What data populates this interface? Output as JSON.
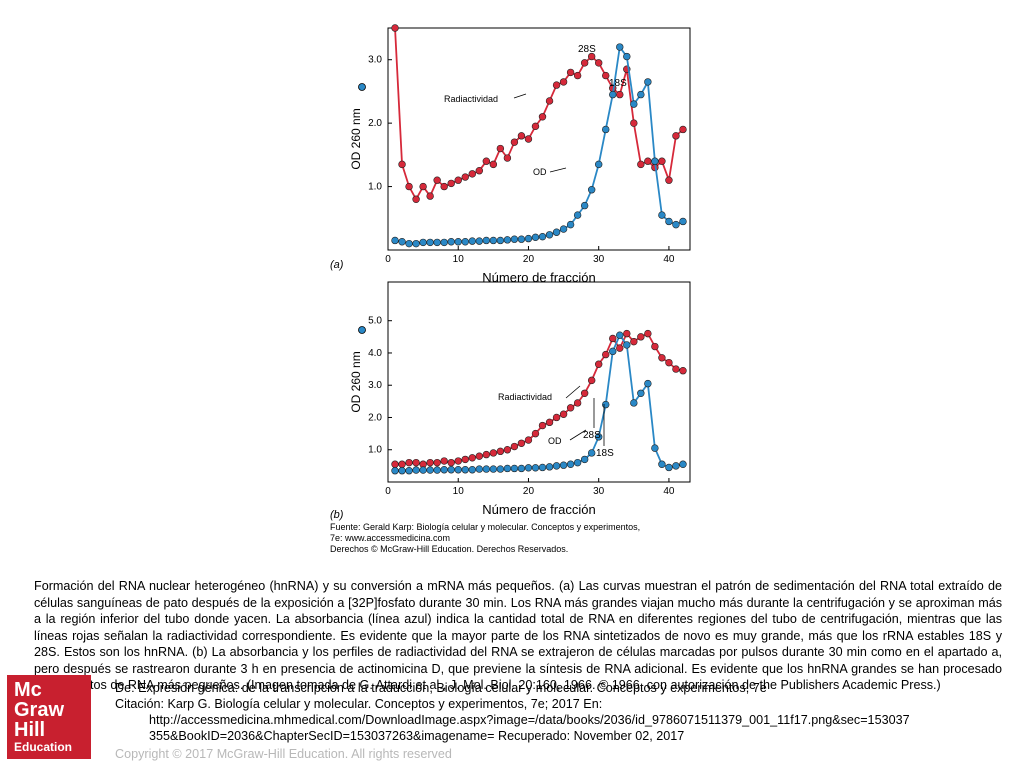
{
  "figure": {
    "source_line1": "Fuente: Gerald Karp: Biología celular y molecular. Conceptos y experimentos,",
    "source_line2": "7e: www.accessmedicina.com",
    "source_line3": "Derechos © McGraw-Hill Education. Derechos Reservados."
  },
  "chart_data": [
    {
      "type": "line",
      "panel_label": "(a)",
      "xlabel": "Número de fracción",
      "ylabel": "OD 260 nm",
      "ylabel_right": "Radiactividad",
      "xlim": [
        0,
        43
      ],
      "ylim": [
        0,
        3.5
      ],
      "x_ticks": [
        0,
        10,
        20,
        30,
        40
      ],
      "y_ticks": [
        1.0,
        2.0,
        3.0
      ],
      "series": [
        {
          "name": "Radiactividad",
          "color": "#d6293a",
          "x": [
            1,
            2,
            3,
            4,
            5,
            6,
            7,
            8,
            9,
            10,
            11,
            12,
            13,
            14,
            15,
            16,
            17,
            18,
            19,
            20,
            21,
            22,
            23,
            24,
            25,
            26,
            27,
            28,
            29,
            30,
            31,
            32,
            33,
            34,
            35,
            36,
            37,
            38,
            39,
            40,
            41,
            42
          ],
          "y": [
            3.5,
            1.35,
            1.0,
            0.8,
            1.0,
            0.85,
            1.1,
            1.0,
            1.05,
            1.1,
            1.15,
            1.2,
            1.25,
            1.4,
            1.35,
            1.6,
            1.45,
            1.7,
            1.8,
            1.75,
            1.95,
            2.1,
            2.35,
            2.6,
            2.65,
            2.8,
            2.75,
            2.95,
            3.05,
            2.95,
            2.75,
            2.55,
            2.45,
            2.85,
            2.0,
            1.35,
            1.4,
            1.3,
            1.4,
            1.1,
            1.8,
            1.9
          ]
        },
        {
          "name": "OD",
          "color": "#2a88c6",
          "x": [
            1,
            2,
            3,
            4,
            5,
            6,
            7,
            8,
            9,
            10,
            11,
            12,
            13,
            14,
            15,
            16,
            17,
            18,
            19,
            20,
            21,
            22,
            23,
            24,
            25,
            26,
            27,
            28,
            29,
            30,
            31,
            32,
            33,
            34,
            35,
            36,
            37,
            38,
            39,
            40,
            41,
            42
          ],
          "y": [
            0.15,
            0.13,
            0.1,
            0.1,
            0.12,
            0.12,
            0.12,
            0.12,
            0.13,
            0.13,
            0.13,
            0.14,
            0.14,
            0.15,
            0.15,
            0.15,
            0.16,
            0.17,
            0.17,
            0.18,
            0.2,
            0.21,
            0.24,
            0.28,
            0.33,
            0.4,
            0.55,
            0.7,
            0.95,
            1.35,
            1.9,
            2.45,
            3.2,
            3.05,
            2.3,
            2.45,
            2.65,
            1.4,
            0.55,
            0.45,
            0.4,
            0.45
          ]
        }
      ],
      "annotations": [
        "Radiactividad",
        "OD",
        "28S",
        "18S"
      ]
    },
    {
      "type": "line",
      "panel_label": "(b)",
      "xlabel": "Número de fracción",
      "ylabel": "OD 260 nm",
      "ylabel_right": "Radiactividad",
      "xlim": [
        0,
        43
      ],
      "ylim": [
        0,
        6.2
      ],
      "x_ticks": [
        0,
        10,
        20,
        30,
        40
      ],
      "y_ticks": [
        1.0,
        2.0,
        3.0,
        4.0,
        5.0
      ],
      "series": [
        {
          "name": "Radiactividad",
          "color": "#d6293a",
          "x": [
            1,
            2,
            3,
            4,
            5,
            6,
            7,
            8,
            9,
            10,
            11,
            12,
            13,
            14,
            15,
            16,
            17,
            18,
            19,
            20,
            21,
            22,
            23,
            24,
            25,
            26,
            27,
            28,
            29,
            30,
            31,
            32,
            33,
            34,
            35,
            36,
            37,
            38,
            39,
            40,
            41,
            42
          ],
          "y": [
            0.55,
            0.55,
            0.6,
            0.6,
            0.55,
            0.6,
            0.6,
            0.65,
            0.6,
            0.65,
            0.7,
            0.75,
            0.8,
            0.85,
            0.9,
            0.95,
            1.0,
            1.1,
            1.2,
            1.3,
            1.5,
            1.75,
            1.85,
            2.0,
            2.1,
            2.3,
            2.45,
            2.75,
            3.15,
            3.65,
            3.95,
            4.45,
            4.15,
            4.6,
            4.35,
            4.5,
            4.6,
            4.2,
            3.85,
            3.7,
            3.5,
            3.45
          ]
        },
        {
          "name": "OD",
          "color": "#2a88c6",
          "x": [
            1,
            2,
            3,
            4,
            5,
            6,
            7,
            8,
            9,
            10,
            11,
            12,
            13,
            14,
            15,
            16,
            17,
            18,
            19,
            20,
            21,
            22,
            23,
            24,
            25,
            26,
            27,
            28,
            29,
            30,
            31,
            32,
            33,
            34,
            35,
            36,
            37,
            38,
            39,
            40,
            41,
            42
          ],
          "y": [
            0.35,
            0.35,
            0.35,
            0.37,
            0.37,
            0.37,
            0.37,
            0.38,
            0.38,
            0.38,
            0.38,
            0.38,
            0.4,
            0.4,
            0.4,
            0.4,
            0.42,
            0.42,
            0.42,
            0.44,
            0.44,
            0.45,
            0.47,
            0.5,
            0.52,
            0.55,
            0.6,
            0.7,
            0.9,
            1.4,
            2.4,
            4.05,
            4.55,
            4.25,
            2.45,
            2.75,
            3.05,
            1.05,
            0.55,
            0.45,
            0.5,
            0.55
          ]
        }
      ],
      "annotations": [
        "Radiactividad",
        "OD",
        "28S",
        "18S"
      ]
    }
  ],
  "caption": "Formación del RNA nuclear heterogéneo (hnRNA) y su conversión a mRNA más pequeños. (a) Las curvas muestran el patrón de sedimentación del RNA total extraído de células sanguíneas de pato después de la exposición a [32P]fosfato durante 30 min. Los RNA más grandes viajan mucho más durante la centrifugación y se aproximan más a la región inferior del tubo donde yacen. La absorbancia (línea azul) indica la cantidad total de RNA en diferentes regiones del tubo de centrifugación, mientras que las líneas rojas señalan la radiactividad correspondiente. Es evidente que la mayor parte de los RNA sintetizados de novo es muy grande, más que los rRNA estables 18S y 28S. Estos son los hnRNA. (b) La absorbancia y los perfiles de radiactividad del RNA se extrajeron de células marcadas por pulsos durante 30 min como en el apartado a, pero después se rastrearon durante 3 h en presencia de actinomicina D, que previene la síntesis de RNA adicional. Es evidente que los hnRNA grandes se han procesado en productos de RNA más pequeños. (Imagen tomada de G. Attardi et al., J. Mol. Biol. 20:160, 1966. © 1966, con autorización de the Publishers Academic Press.)",
  "credit": {
    "line1": "De: Expresión génica: de la transcripción a la traducción, Biología celular y molecular. Conceptos y experimentos, 7e",
    "line2": "Citación: Karp G. Biología celular y molecular. Conceptos y experimentos, 7e; 2017 En:",
    "line3": "http://accessmedicina.mhmedical.com/DownloadImage.aspx?image=/data/books/2036/id_9786071511379_001_11f17.png&sec=153037",
    "line4": "355&BookID=2036&ChapterSecID=153037263&imagename= Recuperado: November 02, 2017"
  },
  "logo": {
    "line1": "Mc",
    "line2": "Graw",
    "line3": "Hill",
    "line4": "Education"
  },
  "copyright": "Copyright © 2017 McGraw-Hill Education. All rights reserved"
}
